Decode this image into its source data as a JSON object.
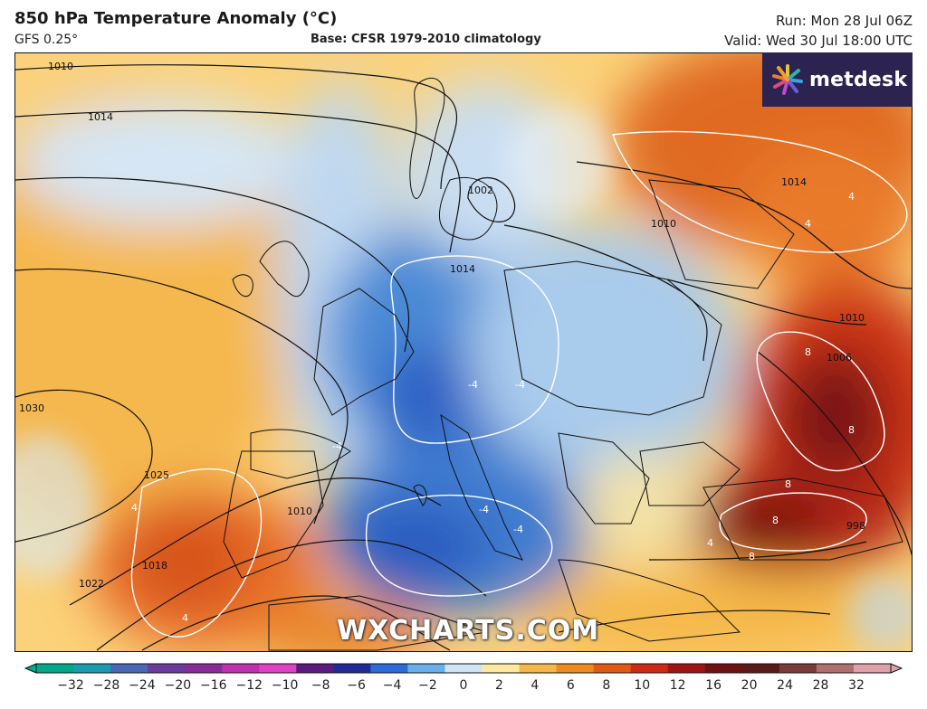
{
  "header": {
    "title": "850 hPa Temperature Anomaly (°C)",
    "model": "GFS 0.25°",
    "base": "Base: CFSR 1979-2010 climatology",
    "run": "Run: Mon 28 Jul 06Z",
    "valid": "Valid: Wed 30 Jul 18:00 UTC"
  },
  "logo": {
    "text": "metdesk",
    "icon": "metdesk-burst-logo"
  },
  "watermark": "WXCHARTS.COM",
  "map": {
    "isobar_labels": [
      "1010",
      "1014",
      "1030",
      "1025",
      "1022",
      "1018",
      "1010",
      "1014",
      "1014",
      "1010",
      "1010",
      "1006",
      "998",
      "1002"
    ],
    "anomaly_labels": [
      "-4",
      "-4",
      "-4",
      "-4",
      "-4",
      "4",
      "4",
      "8",
      "8",
      "8",
      "8",
      "8",
      "4",
      "4",
      "4"
    ]
  },
  "colorbar": {
    "ticks": [
      "−32",
      "−28",
      "−24",
      "−20",
      "−16",
      "−12",
      "−10",
      "−8",
      "−6",
      "−4",
      "−2",
      "0",
      "2",
      "4",
      "6",
      "8",
      "10",
      "12",
      "16",
      "20",
      "24",
      "28",
      "32"
    ],
    "colors": [
      "#00a88a",
      "#1a9cb0",
      "#4a66b8",
      "#6a3aa0",
      "#8a2a9a",
      "#c030b0",
      "#e040c8",
      "#5a1a80",
      "#202a98",
      "#2a6cd8",
      "#68b0ec",
      "#cfe4f4",
      "#ffe9a0",
      "#f7b64a",
      "#ee8a20",
      "#e05a14",
      "#cc2a14",
      "#a01414",
      "#701010",
      "#5a1a1a",
      "#7a3a3a",
      "#b07070",
      "#e0a0a8"
    ]
  }
}
